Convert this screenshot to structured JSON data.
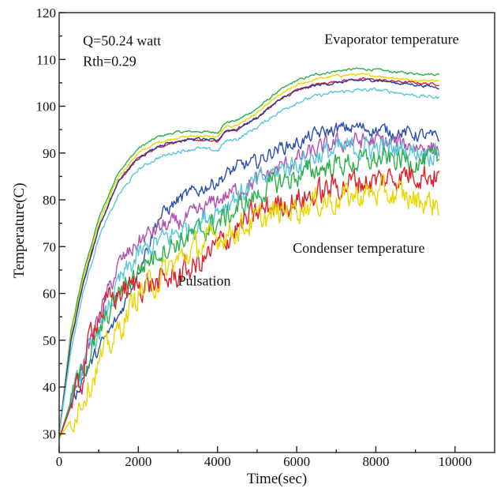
{
  "chart_data": {
    "type": "line",
    "title": "",
    "xlabel": "Time(sec)",
    "ylabel": "Temperature(C)",
    "xlim": [
      0,
      11000
    ],
    "ylim": [
      26,
      120
    ],
    "x_ticks": [
      0,
      2000,
      4000,
      6000,
      8000,
      10000
    ],
    "y_ticks": [
      30,
      40,
      50,
      60,
      70,
      80,
      90,
      100,
      110,
      120
    ],
    "grid": false,
    "legend": "none",
    "annotations": [
      {
        "id": "q",
        "text": "Q=50.24 watt",
        "x": 600,
        "y": 113
      },
      {
        "id": "rth",
        "text": "Rth=0.29",
        "x": 600,
        "y": 108.6
      },
      {
        "id": "evap",
        "text": "Evaporator temperature",
        "x": 6700,
        "y": 113.3
      },
      {
        "id": "cond",
        "text": "Condenser temperature",
        "x": 5900,
        "y": 68.7
      },
      {
        "id": "puls",
        "text": "Pulsation",
        "x": 3000,
        "y": 61.7
      }
    ],
    "series": [
      {
        "group": "evaporator",
        "color": "#2cb04a",
        "noise": 0.2,
        "x": [
          0,
          300,
          600,
          1000,
          1500,
          2000,
          2500,
          3000,
          3500,
          4000,
          4200,
          4500,
          5000,
          5500,
          6000,
          6500,
          7000,
          7500,
          8000,
          8500,
          9000,
          9600
        ],
        "y": [
          30,
          52,
          64,
          76,
          86,
          91,
          93.5,
          94.5,
          94.6,
          94.4,
          96.5,
          97,
          99.5,
          103,
          105.5,
          106.8,
          107.5,
          108,
          107.8,
          107.3,
          107,
          106.8
        ]
      },
      {
        "group": "evaporator",
        "color": "#e8d800",
        "noise": 0.2,
        "x": [
          0,
          300,
          600,
          1000,
          1500,
          2000,
          2500,
          3000,
          3500,
          4000,
          4200,
          4500,
          5000,
          5500,
          6000,
          6500,
          7000,
          7500,
          8000,
          8500,
          9000,
          9600
        ],
        "y": [
          30,
          51,
          63,
          75,
          85,
          90,
          92.3,
          93.3,
          93.7,
          93.4,
          95.5,
          96,
          98.5,
          102,
          104.5,
          105.8,
          106.5,
          106.8,
          106.5,
          106,
          105.5,
          105.5
        ]
      },
      {
        "group": "evaporator",
        "color": "#e0202a",
        "noise": 0.2,
        "x": [
          0,
          300,
          600,
          1000,
          1500,
          2000,
          2500,
          3000,
          3500,
          4000,
          4200,
          4500,
          5000,
          5500,
          6000,
          6500,
          7000,
          7500,
          8000,
          8500,
          9000,
          9600
        ],
        "y": [
          30,
          50,
          62,
          74,
          84,
          89,
          91.3,
          92.5,
          92.8,
          92.4,
          94.5,
          95,
          97.5,
          101,
          103.5,
          104.7,
          105.3,
          105.8,
          105.7,
          105.3,
          105,
          104.7
        ]
      },
      {
        "group": "evaporator",
        "color": "#2b3a9a",
        "noise": 0.25,
        "x": [
          0,
          300,
          600,
          1000,
          1500,
          2000,
          2500,
          3000,
          3500,
          4000,
          4200,
          4500,
          5000,
          5500,
          6000,
          6500,
          7000,
          7500,
          8000,
          8500,
          9000,
          9600
        ],
        "y": [
          30,
          50,
          62,
          74,
          84,
          89,
          91.5,
          92.7,
          93,
          92.6,
          94.8,
          95.2,
          97.6,
          101,
          103.3,
          104.5,
          105,
          105.5,
          105.6,
          105,
          104.6,
          104
        ]
      },
      {
        "group": "evaporator",
        "color": "#5bc6d8",
        "noise": 0.3,
        "x": [
          0,
          300,
          600,
          1000,
          1500,
          2000,
          2500,
          3000,
          3500,
          4000,
          4200,
          4500,
          5000,
          5500,
          6000,
          6500,
          7000,
          7500,
          8000,
          8500,
          9000,
          9600
        ],
        "y": [
          30,
          48,
          60,
          72,
          81,
          86.5,
          89,
          90.3,
          91,
          90.5,
          92.5,
          93,
          95.5,
          98.5,
          100.8,
          102.2,
          103,
          103.4,
          103.5,
          103,
          102.3,
          101.8
        ]
      },
      {
        "group": "condenser",
        "color": "#2b4fae",
        "noise": 1.2,
        "x": [
          0,
          300,
          600,
          1000,
          1500,
          2000,
          2500,
          3000,
          3500,
          4000,
          4500,
          5000,
          5500,
          6000,
          6500,
          7000,
          7500,
          8000,
          8500,
          9000,
          9600
        ],
        "y": [
          29,
          36,
          42,
          48,
          55,
          65,
          76,
          80,
          82,
          84,
          87,
          88,
          91,
          92,
          94,
          95,
          95.5,
          95,
          94.5,
          94,
          93
        ]
      },
      {
        "group": "condenser",
        "color": "#b050b0",
        "noise": 1.6,
        "x": [
          0,
          300,
          600,
          1000,
          1500,
          2000,
          2500,
          3000,
          3500,
          4000,
          4500,
          5000,
          5500,
          6000,
          6500,
          7000,
          7500,
          8000,
          8500,
          9000,
          9600
        ],
        "y": [
          29,
          37,
          45,
          55,
          66,
          71,
          74,
          75,
          77,
          80,
          82,
          84,
          86.5,
          88.5,
          90.5,
          92,
          92.5,
          92.5,
          92,
          91.5,
          91
        ]
      },
      {
        "group": "condenser",
        "color": "#5bc6d8",
        "noise": 2.0,
        "x": [
          0,
          300,
          600,
          1000,
          1500,
          2000,
          2500,
          3000,
          3500,
          4000,
          4500,
          5000,
          5500,
          6000,
          6500,
          7000,
          7500,
          8000,
          8500,
          9000,
          9600
        ],
        "y": [
          29,
          37,
          44,
          52,
          62,
          68,
          71,
          73,
          75,
          78,
          81,
          83.5,
          86,
          88,
          89.5,
          90.5,
          91,
          91,
          91,
          90.5,
          90
        ]
      },
      {
        "group": "condenser",
        "color": "#2cb04a",
        "noise": 2.0,
        "x": [
          0,
          300,
          600,
          1000,
          1500,
          2000,
          2500,
          3000,
          3500,
          4000,
          4500,
          5000,
          5500,
          6000,
          6500,
          7000,
          7500,
          8000,
          8500,
          9000,
          9600
        ],
        "y": [
          29,
          37,
          44,
          51,
          60,
          65,
          69,
          71,
          73,
          75,
          78,
          81,
          83.5,
          85,
          86.5,
          87.5,
          88,
          88.5,
          88.5,
          88.5,
          88
        ]
      },
      {
        "group": "condenser",
        "color": "#e0202a",
        "noise": 2.4,
        "x": [
          0,
          300,
          600,
          800,
          1000,
          1500,
          2000,
          2500,
          3000,
          3500,
          4000,
          4500,
          5000,
          5500,
          6000,
          6500,
          7000,
          7500,
          8000,
          8500,
          9000,
          9600
        ],
        "y": [
          29,
          36,
          42,
          52,
          56,
          60,
          62,
          62,
          64,
          66,
          70,
          74,
          77,
          79,
          80,
          81,
          83,
          84,
          84,
          85,
          86,
          85
        ]
      },
      {
        "group": "condenser",
        "color": "#e8d800",
        "noise": 2.4,
        "x": [
          0,
          300,
          600,
          1000,
          1500,
          2000,
          2500,
          3000,
          3500,
          4000,
          4500,
          5000,
          5500,
          6000,
          6500,
          7000,
          7500,
          8000,
          8500,
          9000,
          9600
        ],
        "y": [
          29,
          33,
          38,
          45,
          52,
          60,
          63,
          67,
          70,
          72,
          74,
          75.5,
          77,
          78.5,
          79.5,
          80,
          81,
          81.5,
          81,
          80,
          79
        ]
      }
    ]
  }
}
